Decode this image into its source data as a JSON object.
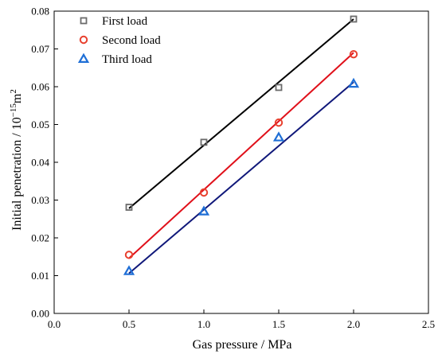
{
  "chart_data": {
    "type": "scatter",
    "title": "",
    "xlabel": "Gas pressure / MPa",
    "ylabel": "Initial penetration / 10",
    "ylabel_exponent": "−15",
    "ylabel_unit": "m",
    "ylabel_unit_exponent": "2",
    "xlim": [
      0.0,
      2.5
    ],
    "ylim": [
      0.0,
      0.08
    ],
    "xticks": [
      "0.0",
      "0.5",
      "1.0",
      "1.5",
      "2.0",
      "2.5"
    ],
    "yticks": [
      "0.00",
      "0.01",
      "0.02",
      "0.03",
      "0.04",
      "0.05",
      "0.06",
      "0.07",
      "0.08"
    ],
    "grid": false,
    "legend_position": "top-left",
    "series": [
      {
        "name": "First load",
        "marker": "square",
        "marker_color": "#6b6b6b",
        "line_color": "#000000",
        "x": [
          0.5,
          1.0,
          1.5,
          2.0
        ],
        "y": [
          0.0281,
          0.0453,
          0.0598,
          0.0779
        ],
        "fit": [
          [
            0.5,
            0.0278
          ],
          [
            2.0,
            0.0779
          ]
        ]
      },
      {
        "name": "Second load",
        "marker": "circle",
        "marker_color": "#e8402e",
        "line_color": "#e0101a",
        "x": [
          0.5,
          1.0,
          1.5,
          2.0
        ],
        "y": [
          0.0155,
          0.032,
          0.0505,
          0.0686
        ],
        "fit": [
          [
            0.5,
            0.0146
          ],
          [
            2.0,
            0.069
          ]
        ]
      },
      {
        "name": "Third load",
        "marker": "triangle",
        "marker_color": "#1f6fd6",
        "line_color": "#10187a",
        "x": [
          0.5,
          1.0,
          1.5,
          2.0
        ],
        "y": [
          0.0112,
          0.027,
          0.0466,
          0.0608
        ],
        "fit": [
          [
            0.5,
            0.0106
          ],
          [
            2.0,
            0.0612
          ]
        ]
      }
    ]
  }
}
